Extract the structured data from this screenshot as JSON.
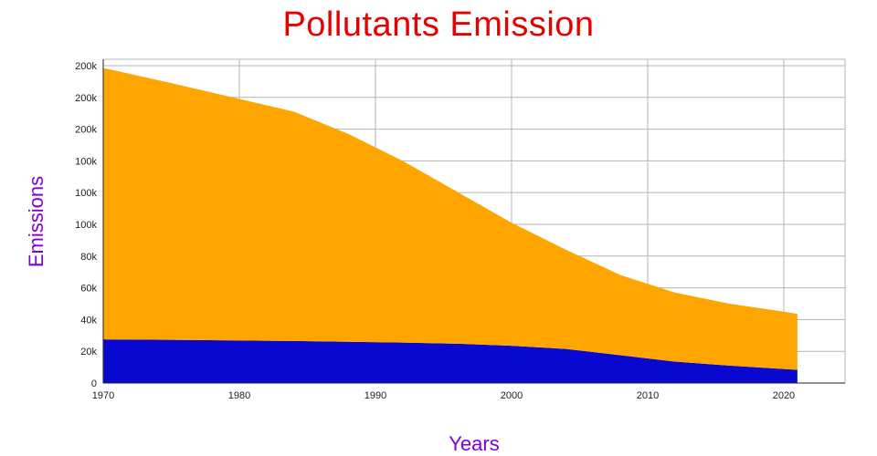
{
  "chart_data": {
    "type": "area",
    "stacked": true,
    "title": "Pollutants Emission",
    "xlabel": "Years",
    "ylabel": "Emissions",
    "x": [
      1970,
      1975,
      1980,
      1984,
      1988,
      1992,
      1996,
      2000,
      2004,
      2008,
      2012,
      2016,
      2020,
      2021
    ],
    "series": [
      {
        "name": "blue-series",
        "color": "#0808d0",
        "values": [
          27500,
          27200,
          26800,
          26500,
          26000,
          25500,
          24800,
          23500,
          21500,
          17500,
          13500,
          11000,
          8800,
          8300
        ]
      },
      {
        "name": "orange-series",
        "color": "#ffa500",
        "values": [
          171000,
          161800,
          152200,
          144500,
          131000,
          114500,
          95700,
          77500,
          62500,
          50500,
          43500,
          39000,
          36200,
          35200
        ]
      }
    ],
    "xlim": [
      1970,
      2024.5
    ],
    "ylim": [
      0,
      204000
    ],
    "x_ticks": [
      {
        "v": 1970,
        "label": "1970"
      },
      {
        "v": 1980,
        "label": "1980"
      },
      {
        "v": 1990,
        "label": "1990"
      },
      {
        "v": 2000,
        "label": "2000"
      },
      {
        "v": 2010,
        "label": "2010"
      },
      {
        "v": 2020,
        "label": "2020"
      }
    ],
    "y_ticks": [
      {
        "v": 0,
        "label": "0"
      },
      {
        "v": 20000,
        "label": "20k"
      },
      {
        "v": 40000,
        "label": "40k"
      },
      {
        "v": 60000,
        "label": "60k"
      },
      {
        "v": 80000,
        "label": "80k"
      },
      {
        "v": 100000,
        "label": "100k"
      },
      {
        "v": 120000,
        "label": "100k"
      },
      {
        "v": 140000,
        "label": "100k"
      },
      {
        "v": 160000,
        "label": "200k"
      },
      {
        "v": 180000,
        "label": "200k"
      },
      {
        "v": 200000,
        "label": "200k"
      }
    ],
    "grid": true,
    "legend": "none",
    "colors": {
      "title": "#e60000",
      "axis_titles": "#8200d6",
      "tick_labels": "#222222",
      "gridlines": "#b4b4b4",
      "axis_lines": "#222222",
      "background": "#ffffff"
    }
  }
}
